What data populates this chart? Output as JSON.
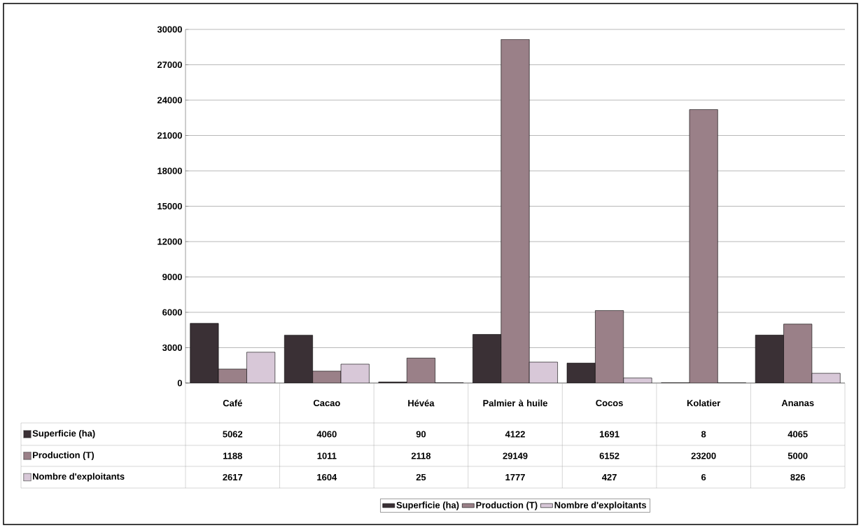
{
  "chart_data": {
    "type": "bar",
    "categories": [
      "Café",
      "Cacao",
      "Hévéa",
      "Palmier à huile",
      "Cocos",
      "Kolatier",
      "Ananas"
    ],
    "series": [
      {
        "name": "Superficie (ha)",
        "color": "#3a3035",
        "values": [
          5062,
          4060,
          90,
          4122,
          1691,
          8,
          4065
        ]
      },
      {
        "name": "Production (T)",
        "color": "#9a8088",
        "values": [
          1188,
          1011,
          2118,
          29149,
          6152,
          23200,
          5000
        ]
      },
      {
        "name": "Nombre d'exploitants",
        "color": "#d8c8d8",
        "values": [
          2617,
          1604,
          25,
          1777,
          427,
          6,
          826
        ]
      }
    ],
    "ylim": [
      0,
      30000
    ],
    "yticks": [
      0,
      3000,
      6000,
      9000,
      12000,
      15000,
      18000,
      21000,
      24000,
      27000,
      30000
    ],
    "grid": "y",
    "legend": "bottom",
    "data_labels": true
  }
}
